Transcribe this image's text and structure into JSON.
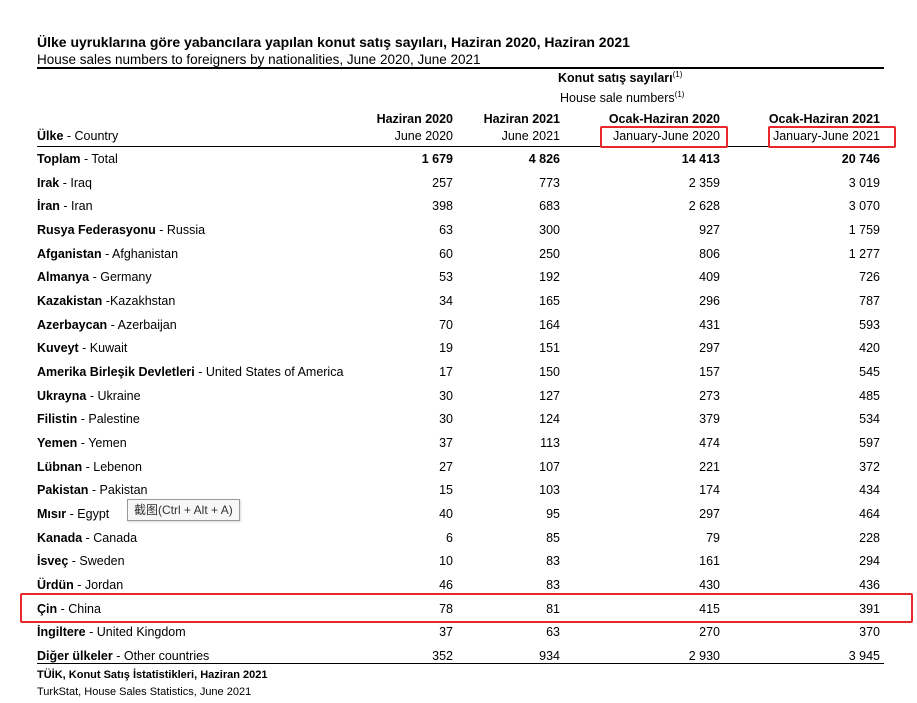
{
  "title": {
    "tr": "Ülke uyruklarına göre yabancılara yapılan konut satış sayıları, Haziran 2020, Haziran 2021",
    "en": "House sales numbers to foreigners by nationalities, June 2020, June 2021"
  },
  "group_header": {
    "tr": "Konut satış sayıları",
    "en": "House sale numbers",
    "note": "(1)"
  },
  "country_header": {
    "tr": "Ülke",
    "en": "Country"
  },
  "columns": [
    {
      "tr": "Haziran 2020",
      "en": "June 2020"
    },
    {
      "tr": "Haziran 2021",
      "en": "June 2021"
    },
    {
      "tr": "Ocak-Haziran 2020",
      "en": "January-June 2020"
    },
    {
      "tr": "Ocak-Haziran 2021",
      "en": "January-June 2021"
    }
  ],
  "rows": [
    {
      "tr": "Toplam",
      "sep": " - ",
      "en": "Total",
      "values": [
        "1 679",
        "4 826",
        "14 413",
        "20 746"
      ]
    },
    {
      "tr": "Irak",
      "sep": " - ",
      "en": "Iraq",
      "values": [
        "257",
        "773",
        "2 359",
        "3 019"
      ]
    },
    {
      "tr": "İran",
      "sep": " - ",
      "en": "Iran",
      "values": [
        "398",
        "683",
        "2 628",
        "3 070"
      ]
    },
    {
      "tr": "Rusya Federasyonu",
      "sep": " - ",
      "en": "Russia",
      "values": [
        "63",
        "300",
        "927",
        "1 759"
      ]
    },
    {
      "tr": "Afganistan",
      "sep": " - ",
      "en": "Afghanistan",
      "values": [
        "60",
        "250",
        "806",
        "1 277"
      ]
    },
    {
      "tr": "Almanya",
      "sep": " - ",
      "en": "Germany",
      "values": [
        "53",
        "192",
        "409",
        "726"
      ]
    },
    {
      "tr": "Kazakistan",
      "sep": " -",
      "en": "Kazakhstan",
      "values": [
        "34",
        "165",
        "296",
        "787"
      ]
    },
    {
      "tr": "Azerbaycan",
      "sep": " - ",
      "en": "Azerbaijan",
      "values": [
        "70",
        "164",
        "431",
        "593"
      ]
    },
    {
      "tr": "Kuveyt",
      "sep": " - ",
      "en": "Kuwait",
      "values": [
        "19",
        "151",
        "297",
        "420"
      ]
    },
    {
      "tr": "Amerika Birleşik Devletleri",
      "sep": " - ",
      "en": "United States of America",
      "values": [
        "17",
        "150",
        "157",
        "545"
      ]
    },
    {
      "tr": "Ukrayna",
      "sep": " - ",
      "en": "Ukraine",
      "values": [
        "30",
        "127",
        "273",
        "485"
      ]
    },
    {
      "tr": "Filistin",
      "sep": " - ",
      "en": "Palestine",
      "values": [
        "30",
        "124",
        "379",
        "534"
      ]
    },
    {
      "tr": "Yemen",
      "sep": " - ",
      "en": "Yemen",
      "values": [
        "37",
        "113",
        "474",
        "597"
      ]
    },
    {
      "tr": "Lübnan",
      "sep": " - ",
      "en": "Lebenon",
      "values": [
        "27",
        "107",
        "221",
        "372"
      ]
    },
    {
      "tr": "Pakistan",
      "sep": " - ",
      "en": "Pakistan",
      "values": [
        "15",
        "103",
        "174",
        "434"
      ]
    },
    {
      "tr": "Mısır",
      "sep": " - ",
      "en": "Egypt",
      "values": [
        "40",
        "95",
        "297",
        "464"
      ]
    },
    {
      "tr": "Kanada",
      "sep": " - ",
      "en": "Canada",
      "values": [
        "6",
        "85",
        "79",
        "228"
      ]
    },
    {
      "tr": "İsveç",
      "sep": " - ",
      "en": "Sweden",
      "values": [
        "10",
        "83",
        "161",
        "294"
      ]
    },
    {
      "tr": "Ürdün",
      "sep": " - ",
      "en": "Jordan",
      "values": [
        "46",
        "83",
        "430",
        "436"
      ]
    },
    {
      "tr": "Çin",
      "sep": " - ",
      "en": "China",
      "values": [
        "78",
        "81",
        "415",
        "391"
      ]
    },
    {
      "tr": "İngiltere",
      "sep": " - ",
      "en": "United Kingdom",
      "values": [
        "37",
        "63",
        "270",
        "370"
      ]
    },
    {
      "tr": "Diğer ülkeler",
      "sep": " - ",
      "en": "Other countries",
      "values": [
        "352",
        "934",
        "2 930",
        "3 945"
      ]
    }
  ],
  "source": {
    "tr": "TÜİK, Konut Satış İstatistikleri, Haziran 2021",
    "en": "TurkStat, House Sales Statistics, June 2021"
  },
  "tooltip": "截图(Ctrl + Alt + A)",
  "highlight_color": "#e8282d"
}
